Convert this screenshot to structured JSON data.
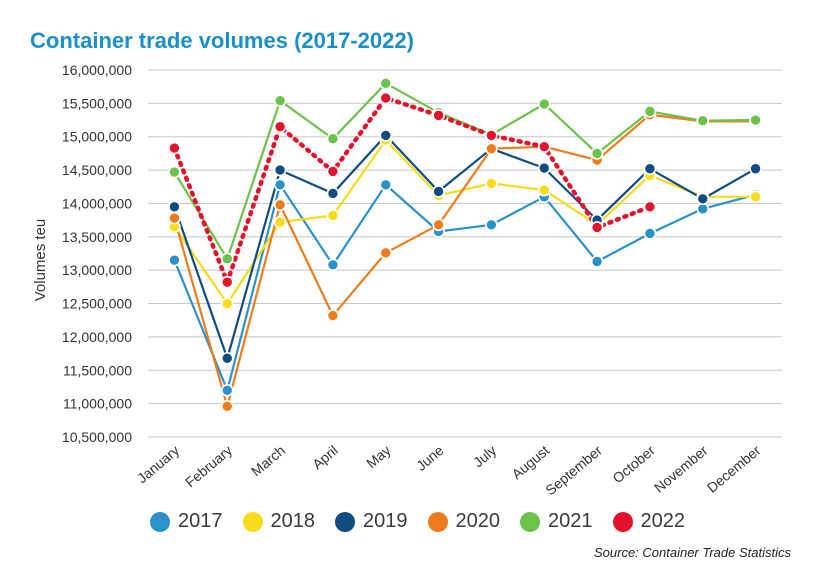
{
  "chart_data": {
    "type": "line",
    "title": "Container trade volumes (2017-2022)",
    "ylabel": "Volumes teu",
    "xlabel": "",
    "ylim": [
      10500000,
      16000000
    ],
    "yticks": [
      10500000,
      11000000,
      11500000,
      12000000,
      12500000,
      13000000,
      13500000,
      14000000,
      14500000,
      15000000,
      15500000,
      16000000
    ],
    "ytick_labels": [
      "10,500,000",
      "11,000,000",
      "11,500,000",
      "12,000,000",
      "12,500,000",
      "13,000,000",
      "13,500,000",
      "14,000,000",
      "14,500,000",
      "15,000,000",
      "15,500,000",
      "16,000,000"
    ],
    "categories": [
      "January",
      "February",
      "March",
      "April",
      "May",
      "June",
      "July",
      "August",
      "September",
      "October",
      "November",
      "December"
    ],
    "grid": true,
    "legend": "bottom",
    "source": "Source: Container Trade Statistics",
    "series": [
      {
        "name": "2017",
        "color": "#2a92c8",
        "dashed": false,
        "values": [
          13150000,
          11200000,
          14280000,
          13080000,
          14280000,
          13580000,
          13680000,
          14100000,
          13130000,
          13550000,
          13920000,
          14130000
        ]
      },
      {
        "name": "2018",
        "color": "#f8dc1a",
        "dashed": false,
        "values": [
          13650000,
          12500000,
          13720000,
          13820000,
          14950000,
          14120000,
          14300000,
          14200000,
          13680000,
          14420000,
          14100000,
          14100000
        ]
      },
      {
        "name": "2019",
        "color": "#0f4c81",
        "dashed": false,
        "values": [
          13950000,
          11680000,
          14500000,
          14150000,
          15020000,
          14180000,
          14820000,
          14530000,
          13750000,
          14520000,
          14070000,
          14520000
        ]
      },
      {
        "name": "2020",
        "color": "#ef7c1c",
        "dashed": false,
        "values": [
          13780000,
          10960000,
          13980000,
          12320000,
          13260000,
          13680000,
          14820000,
          14850000,
          14650000,
          15330000,
          15230000,
          15230000
        ]
      },
      {
        "name": "2021",
        "color": "#6cc24a",
        "dashed": false,
        "values": [
          14470000,
          13170000,
          15540000,
          14970000,
          15800000,
          15360000,
          15030000,
          15490000,
          14750000,
          15380000,
          15240000,
          15250000
        ]
      },
      {
        "name": "2022",
        "color": "#e3132c",
        "dashed": true,
        "values": [
          14830000,
          12820000,
          15150000,
          14480000,
          15580000,
          15320000,
          15020000,
          14850000,
          13640000,
          13950000,
          null,
          null
        ]
      }
    ]
  }
}
